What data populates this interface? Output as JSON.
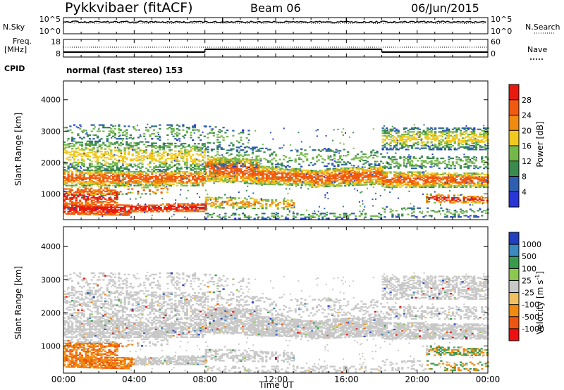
{
  "header": {
    "title": "Pykkvibaer (fitACF)",
    "beam": "Beam 06",
    "date": "06/Jun/2015"
  },
  "labels": {
    "nsky": "N.Sky",
    "nsearch": "N.Search",
    "freq_line1": "Freq.",
    "freq_line2": "[MHz]",
    "nave": "Nave",
    "cpid": "CPID",
    "cpid_value": "normal (fast stereo) 153"
  },
  "colors": {
    "power": [
      "#2a35d8",
      "#2e5fb0",
      "#3a8a4e",
      "#74b84a",
      "#f0c81e",
      "#f08a10",
      "#f05a10",
      "#e81a10"
    ],
    "velocity": [
      "#ee1111",
      "#ee5511",
      "#f08a10",
      "#f0c060",
      "#c8c8c8",
      "#8cc850",
      "#3a9a4e",
      "#3a8ac0",
      "#2040c0"
    ],
    "gray_scatter": "#c8c8c0"
  },
  "chart_data": [
    {
      "panel": "noise",
      "type": "line",
      "x": [
        0,
        1,
        2,
        3,
        4,
        5,
        6,
        7,
        8,
        9,
        10,
        11,
        12,
        13,
        14,
        15,
        16,
        17,
        18,
        19,
        20,
        21,
        22,
        23,
        24
      ],
      "y_ticks": [
        "10^5",
        "10^0"
      ],
      "y_ticks_right": [
        "10^5",
        "10^0"
      ],
      "series": [
        {
          "name": "N.Sky",
          "style": "solid"
        },
        {
          "name": "N.Search",
          "style": "dotted"
        }
      ]
    },
    {
      "panel": "frequency",
      "type": "line",
      "y_ticks": [
        "18",
        "8"
      ],
      "y_ticks_right": [
        "60",
        "0"
      ],
      "segments_hours": [
        [
          0,
          8
        ],
        [
          8,
          18
        ],
        [
          18,
          24
        ]
      ],
      "freq_level": [
        "low",
        "high",
        "low"
      ]
    },
    {
      "panel": "power",
      "type": "heatmap",
      "ylabel": "Slant Range [km]",
      "y_ticks": [
        "1000",
        "2000",
        "3000",
        "4000"
      ],
      "ylim": [
        180,
        4600
      ],
      "colorbar_label": "Power [dB]",
      "colorbar_ticks": [
        "4",
        "8",
        "12",
        "16",
        "20",
        "24",
        "28"
      ]
    },
    {
      "panel": "velocity",
      "type": "heatmap",
      "ylabel": "Slant Range [km]",
      "y_ticks": [
        "1000",
        "2000",
        "3000",
        "4000"
      ],
      "ylim": [
        180,
        4600
      ],
      "colorbar_label": "Velocity",
      "colorbar_units": "[m s",
      "colorbar_units_exp": "-1",
      "colorbar_units_end": "]",
      "colorbar_ticks": [
        "-1000",
        "-500",
        "-100",
        "-25",
        "25",
        "100",
        "500",
        "1000"
      ]
    }
  ],
  "xaxis": {
    "label": "Time UT",
    "ticks": [
      "00:00",
      "04:00",
      "08:00",
      "12:00",
      "16:00",
      "20:00",
      "00:00"
    ]
  }
}
